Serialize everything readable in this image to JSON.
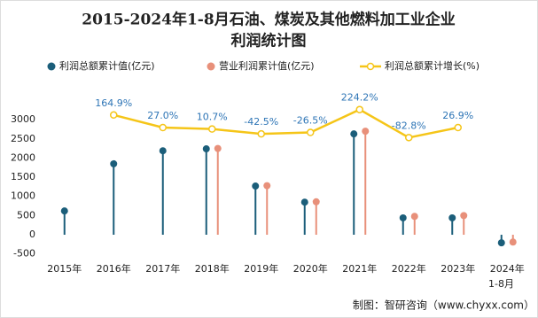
{
  "chart_data": {
    "type": "lollipop-line",
    "title_lines": [
      "2015-2024年1-8月石油、煤炭及其他燃料加工业企业",
      "利润统计图"
    ],
    "categories": [
      "2015年",
      "2016年",
      "2017年",
      "2018年",
      "2019年",
      "2020年",
      "2021年",
      "2022年",
      "2023年",
      "2024年"
    ],
    "x_note": "1-8月",
    "series": [
      {
        "name": "利润总额累计值(亿元)",
        "color": "#1b5e7a",
        "values": [
          620,
          1850,
          2190,
          2240,
          1270,
          850,
          2630,
          440,
          440,
          -210
        ]
      },
      {
        "name": "营业利润累计值(亿元)",
        "color": "#e8907a",
        "values": [
          null,
          null,
          null,
          2250,
          1280,
          860,
          2700,
          480,
          500,
          -190
        ]
      },
      {
        "name": "利润总额累计增长(%)",
        "color": "#f5c518",
        "axis": "y2",
        "values": [
          null,
          164.9,
          27.0,
          10.7,
          -42.5,
          -26.5,
          224.2,
          -82.8,
          26.9,
          null
        ],
        "value_labels": [
          null,
          "164.9%",
          "27.0%",
          "10.7%",
          "-42.5%",
          "-26.5%",
          "224.2%",
          "-82.8%",
          "26.9%",
          null
        ]
      }
    ],
    "ylim": [
      -600,
      3350
    ],
    "yticks": [
      -500,
      0,
      500,
      1000,
      1500,
      2000,
      2500,
      3000
    ],
    "y2lim": [
      -1400,
      260
    ],
    "source": "制图：智研咨询（www.chyxx.com）"
  }
}
